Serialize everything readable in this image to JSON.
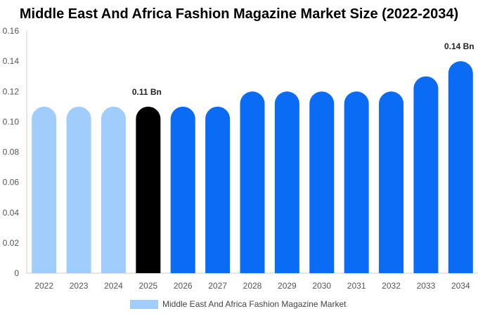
{
  "chart_data": {
    "type": "bar",
    "title": "Middle East And Africa Fashion Magazine Market Size (2022-2034)",
    "categories": [
      "2022",
      "2023",
      "2024",
      "2025",
      "2026",
      "2027",
      "2028",
      "2029",
      "2030",
      "2031",
      "2032",
      "2033",
      "2034"
    ],
    "series": [
      {
        "name": "Middle East And Africa Fashion Magazine Market",
        "values": [
          0.11,
          0.11,
          0.11,
          0.11,
          0.11,
          0.11,
          0.12,
          0.12,
          0.12,
          0.12,
          0.12,
          0.13,
          0.14
        ]
      }
    ],
    "bar_colors": [
      "#a0cdfc",
      "#a0cdfc",
      "#a0cdfc",
      "#000000",
      "#0a6bf5",
      "#0a6bf5",
      "#0a6bf5",
      "#0a6bf5",
      "#0a6bf5",
      "#0a6bf5",
      "#0a6bf5",
      "#0a6bf5",
      "#0a6bf5"
    ],
    "data_labels": [
      {
        "category": "2025",
        "text": "0.11 Bn"
      },
      {
        "category": "2034",
        "text": "0.14 Bn"
      }
    ],
    "ylim": [
      0,
      0.16
    ],
    "yticks": [
      "0",
      "0.02",
      "0.04",
      "0.06",
      "0.08",
      "0.10",
      "0.12",
      "0.14",
      "0.16"
    ],
    "legend_position": "bottom",
    "legend_color": "#a0cdfc",
    "grid": false,
    "xlabel": "",
    "ylabel": ""
  }
}
